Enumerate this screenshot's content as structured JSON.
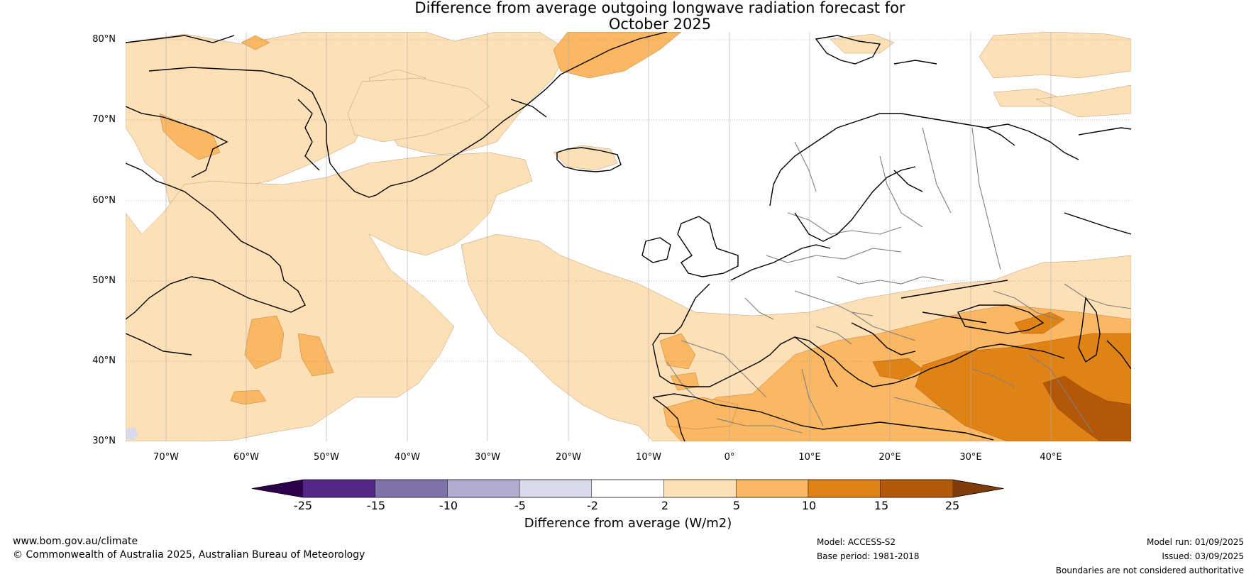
{
  "title_line1": "Difference from average outgoing longwave radiation forecast for",
  "title_line2": "October 2025",
  "map": {
    "lon_range": [
      -75,
      50
    ],
    "lat_range": [
      30,
      81
    ],
    "lat_ticks": [
      "80°N",
      "70°N",
      "60°N",
      "50°N",
      "40°N",
      "30°N"
    ],
    "lon_ticks": [
      "70°W",
      "60°W",
      "50°W",
      "40°W",
      "30°W",
      "20°W",
      "10°W",
      "0°",
      "10°E",
      "20°E",
      "30°E",
      "40°E"
    ],
    "colors": {
      "coast": "#000000",
      "borders": "#808080",
      "grid": "#888888",
      "plus_2_5": "#fde0b6",
      "plus_5_10": "#fbb762",
      "plus_10_15": "#e08314",
      "plus_15_25": "#b35806",
      "minus_2_5": "#d8daeb"
    }
  },
  "colorbar": {
    "boundaries": [
      "-25",
      "-15",
      "-10",
      "-5",
      "-2",
      "2",
      "5",
      "10",
      "15",
      "25"
    ],
    "colors": [
      "#2d004b",
      "#542788",
      "#8073ac",
      "#b2abd2",
      "#d8daeb",
      "#ffffff",
      "#fde0b6",
      "#fbb762",
      "#e08314",
      "#b35806",
      "#7f3b08"
    ],
    "label": "Difference from average (W/m2)"
  },
  "footer": {
    "website": "www.bom.gov.au/climate",
    "copyright": "© Commonwealth of Australia 2025, Australian Bureau of Meteorology",
    "model": "Model: ACCESS-S2",
    "base_period": "Base period: 1981-2018",
    "model_run": "Model run: 01/09/2025",
    "issued": "Issued: 03/09/2025",
    "disclaimer": "Boundaries are not considered authoritative"
  }
}
